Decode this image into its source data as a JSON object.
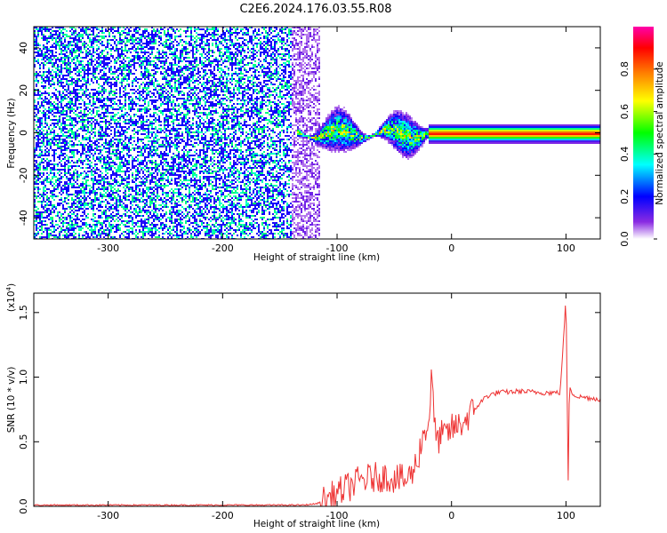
{
  "title": "C2E6.2024.176.03.55.R08",
  "chart_data": [
    {
      "type": "heatmap",
      "xlabel": "Height of straight line (km)",
      "ylabel": "Frequency (Hz)",
      "xlim": [
        -365,
        130
      ],
      "ylim": [
        -50,
        50
      ],
      "x_ticks": [
        -300,
        -200,
        -100,
        0,
        100
      ],
      "x_tick_labels": [
        "-300",
        "-200",
        "-100",
        "0",
        "100"
      ],
      "y_ticks": [
        -40,
        -20,
        0,
        20,
        40
      ],
      "y_tick_labels": [
        "-40",
        "-20",
        "0",
        "20",
        "40"
      ],
      "grid": false,
      "colorbar": {
        "label": "Normalized spectral amplitude",
        "range": [
          0,
          1
        ],
        "ticks": [
          0.0,
          0.2,
          0.4,
          0.6,
          0.8
        ],
        "tick_labels": [
          "0.0",
          "0.2",
          "0.4",
          "0.6",
          "0.8"
        ],
        "colormap": "rainbow",
        "stops": [
          "#ffffff",
          "#8a2be2",
          "#0000ff",
          "#00ffff",
          "#00ff00",
          "#ffff00",
          "#ff8000",
          "#ff0000",
          "#ff00aa"
        ]
      },
      "features": [
        {
          "name": "noise",
          "x_range": [
            -365,
            -115
          ],
          "freq_range": [
            -50,
            50
          ],
          "amplitude": 0.15
        },
        {
          "name": "turbulent",
          "x_range": [
            -135,
            -20
          ],
          "freq_center": 0,
          "freq_spread": 8,
          "amplitude": 0.4
        },
        {
          "name": "tone",
          "x_range": [
            -20,
            130
          ],
          "freq_center": 0,
          "freq_spread": 2,
          "amplitude": 0.9
        }
      ]
    },
    {
      "type": "line",
      "xlabel": "Height of straight line (km)",
      "ylabel": "SNR (10 * v/v)",
      "y_multiplier": "(x10",
      "y_multiplier_exp": "4",
      "y_multiplier_close": ")",
      "xlim": [
        -365,
        130
      ],
      "ylim": [
        0,
        1.65
      ],
      "x_ticks": [
        -300,
        -200,
        -100,
        0,
        100
      ],
      "x_tick_labels": [
        "-300",
        "-200",
        "-100",
        "0",
        "100"
      ],
      "y_ticks": [
        0.0,
        0.5,
        1.0,
        1.5
      ],
      "y_tick_labels": [
        "0.0",
        "0.5",
        "1.0",
        "1.5"
      ],
      "grid": false,
      "series": [
        {
          "color": "#ee3333",
          "x": [
            -365,
            -300,
            -200,
            -130,
            -118,
            -110,
            -100,
            -90,
            -80,
            -70,
            -60,
            -50,
            -40,
            -35,
            -30,
            -25,
            -22,
            -20,
            -17,
            -15,
            -12,
            -10,
            -5,
            0,
            5,
            10,
            15,
            20,
            25,
            30,
            40,
            60,
            80,
            95,
            100,
            102,
            103,
            105,
            110,
            120,
            130
          ],
          "y": [
            0.01,
            0.01,
            0.01,
            0.01,
            0.02,
            0.05,
            0.1,
            0.15,
            0.2,
            0.22,
            0.23,
            0.22,
            0.2,
            0.25,
            0.35,
            0.55,
            0.6,
            0.65,
            1.05,
            0.6,
            0.5,
            0.55,
            0.55,
            0.6,
            0.62,
            0.65,
            0.7,
            0.75,
            0.8,
            0.85,
            0.88,
            0.89,
            0.88,
            0.88,
            1.62,
            0.18,
            0.95,
            0.88,
            0.85,
            0.84,
            0.83
          ]
        }
      ]
    }
  ]
}
